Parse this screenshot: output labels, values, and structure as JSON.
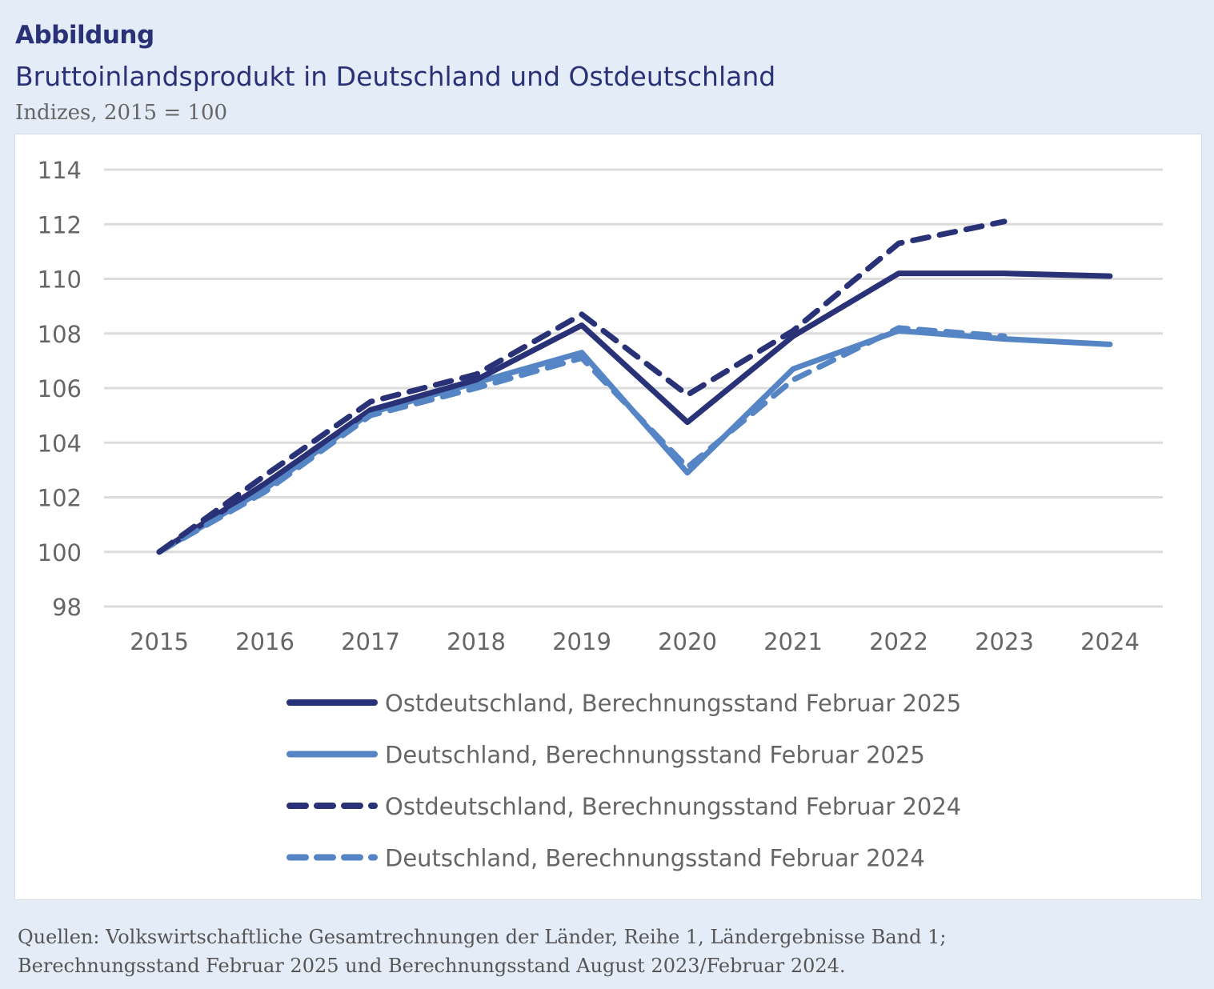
{
  "header": {
    "label": "Abbildung",
    "title": "Bruttoinlandsprodukt in Deutschland und Ostdeutschland",
    "subtitle": "Indizes, 2015 = 100"
  },
  "source": {
    "line1": "Quellen: Volkswirtschaftliche Gesamtrechnungen der Länder, Reihe 1, Ländergebnisse Band 1;",
    "line2": "Berechnungsstand Februar 2025 und Berechnungsstand August 2023/Februar 2024."
  },
  "chart_data": {
    "type": "line",
    "title": "Bruttoinlandsprodukt in Deutschland und Ostdeutschland",
    "ylabel": "Indizes, 2015 = 100",
    "ylim": [
      98,
      114
    ],
    "yticks": [
      98,
      100,
      102,
      104,
      106,
      108,
      110,
      112,
      114
    ],
    "grid": true,
    "legend": "bottom",
    "categories": [
      "2015",
      "2016",
      "2017",
      "2018",
      "2019",
      "2020",
      "2021",
      "2022",
      "2023",
      "2024"
    ],
    "series": [
      {
        "name": "Ostdeutschland, Berechnungsstand Februar 2025",
        "color": "#2a3277",
        "dashed": false,
        "values": [
          100,
          102.5,
          105.2,
          106.3,
          108.3,
          104.75,
          107.9,
          110.2,
          110.2,
          110.1
        ]
      },
      {
        "name": "Deutschland, Berechnungsstand Februar 2025",
        "color": "#5585c5",
        "dashed": false,
        "values": [
          100,
          102.3,
          105.1,
          106.2,
          107.3,
          102.9,
          106.7,
          108.1,
          107.8,
          107.6
        ]
      },
      {
        "name": "Ostdeutschland, Berechnungsstand Februar 2024",
        "color": "#2a3277",
        "dashed": true,
        "values": [
          100,
          102.8,
          105.5,
          106.5,
          108.7,
          105.75,
          108.1,
          111.3,
          112.1,
          null
        ]
      },
      {
        "name": "Deutschland, Berechnungsstand Februar 2024",
        "color": "#5585c5",
        "dashed": true,
        "values": [
          100,
          102.2,
          105.0,
          106.0,
          107.1,
          103.1,
          106.3,
          108.2,
          107.9,
          null
        ]
      }
    ]
  }
}
